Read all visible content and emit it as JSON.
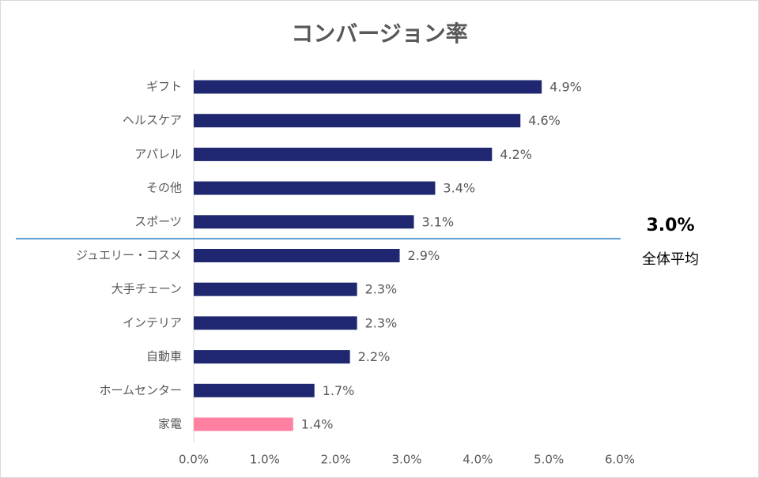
{
  "chart_data": {
    "type": "bar",
    "orientation": "horizontal",
    "title": "コンバージョン率",
    "categories": [
      "ギフト",
      "ヘルスケア",
      "アパレル",
      "その他",
      "スポーツ",
      "ジュエリー・コスメ",
      "大手チェーン",
      "インテリア",
      "自動車",
      "ホームセンター",
      "家電"
    ],
    "values": [
      4.9,
      4.6,
      4.2,
      3.4,
      3.1,
      2.9,
      2.3,
      2.3,
      2.2,
      1.7,
      1.4
    ],
    "value_labels": [
      "4.9%",
      "4.6%",
      "4.2%",
      "3.4%",
      "3.1%",
      "2.9%",
      "2.3%",
      "2.3%",
      "2.2%",
      "1.7%",
      "1.4%"
    ],
    "colors": [
      "#1f2770",
      "#1f2770",
      "#1f2770",
      "#1f2770",
      "#1f2770",
      "#1f2770",
      "#1f2770",
      "#1f2770",
      "#1f2770",
      "#1f2770",
      "#ff80a0"
    ],
    "xlim": [
      0,
      6
    ],
    "xticks": [
      {
        "value": 0,
        "label": "0.0%"
      },
      {
        "value": 1,
        "label": "1.0%"
      },
      {
        "value": 2,
        "label": "2.0%"
      },
      {
        "value": 3,
        "label": "3.0%"
      },
      {
        "value": 4,
        "label": "4.0%"
      },
      {
        "value": 5,
        "label": "5.0%"
      },
      {
        "value": 6,
        "label": "6.0%"
      }
    ],
    "reference_line": {
      "value": 3.0,
      "value_label": "3.0%",
      "label": "全体平均",
      "color": "#5b9bd5"
    }
  }
}
